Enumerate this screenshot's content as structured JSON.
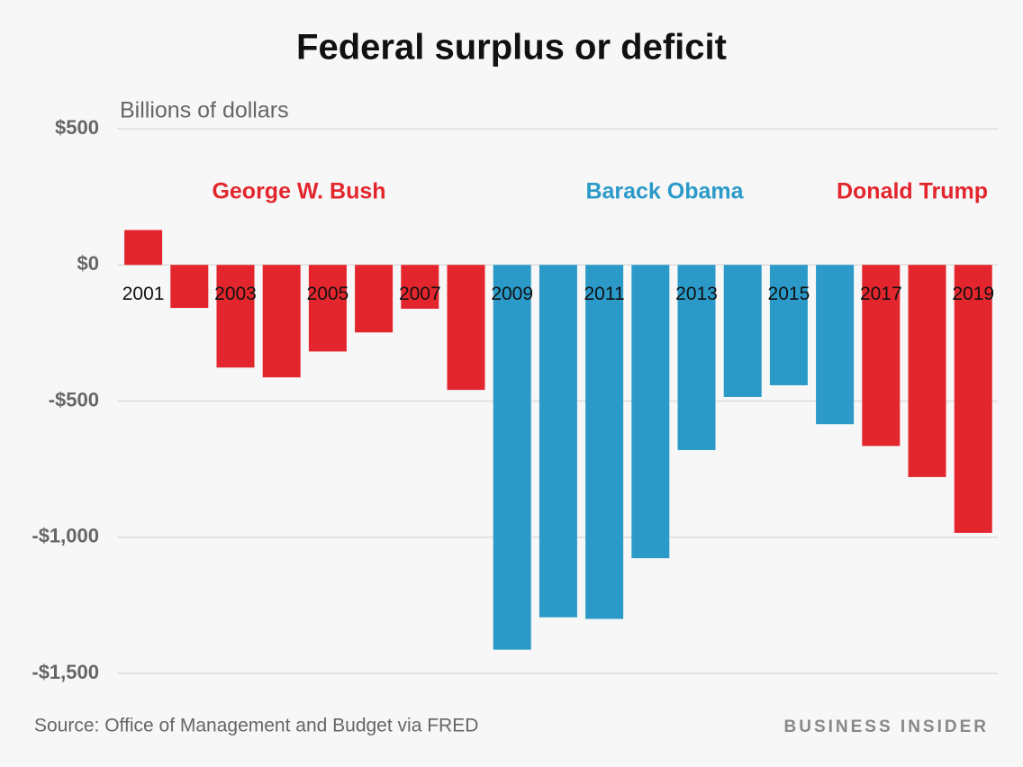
{
  "chart_data": {
    "type": "bar",
    "title": "Federal surplus or deficit",
    "subtitle": "Billions of dollars",
    "categories": [
      "2001",
      null,
      "2003",
      null,
      "2005",
      null,
      "2007",
      null,
      "2009",
      null,
      "2011",
      null,
      "2013",
      null,
      "2015",
      null,
      "2017",
      null,
      "2019"
    ],
    "values": [
      128,
      -158,
      -377,
      -413,
      -318,
      -248,
      -161,
      -459,
      -1413,
      -1294,
      -1300,
      -1077,
      -680,
      -485,
      -442,
      -585,
      -665,
      -779,
      -984
    ],
    "colors": [
      "#e3262d",
      "#e3262d",
      "#e3262d",
      "#e3262d",
      "#e3262d",
      "#e3262d",
      "#e3262d",
      "#e3262d",
      "#2b9ac9",
      "#2b9ac9",
      "#2b9ac9",
      "#2b9ac9",
      "#2b9ac9",
      "#2b9ac9",
      "#2b9ac9",
      "#2b9ac9",
      "#e3262d",
      "#e3262d",
      "#e3262d"
    ],
    "ylim": [
      -1500,
      500
    ],
    "yticks": [
      {
        "value": 500,
        "label": "$500"
      },
      {
        "value": 0,
        "label": "$0"
      },
      {
        "value": -500,
        "label": "-$500"
      },
      {
        "value": -1000,
        "label": "-$1,000"
      },
      {
        "value": -1500,
        "label": "-$1,500"
      }
    ],
    "grid": true,
    "annotations": [
      {
        "text": "George W. Bush",
        "color": "#e3262d"
      },
      {
        "text": "Barack Obama",
        "color": "#2b9ac9"
      },
      {
        "text": "Donald Trump",
        "color": "#e3262d"
      }
    ],
    "source": "Source: Office of Management and Budget via FRED",
    "brand": "BUSINESS INSIDER"
  }
}
